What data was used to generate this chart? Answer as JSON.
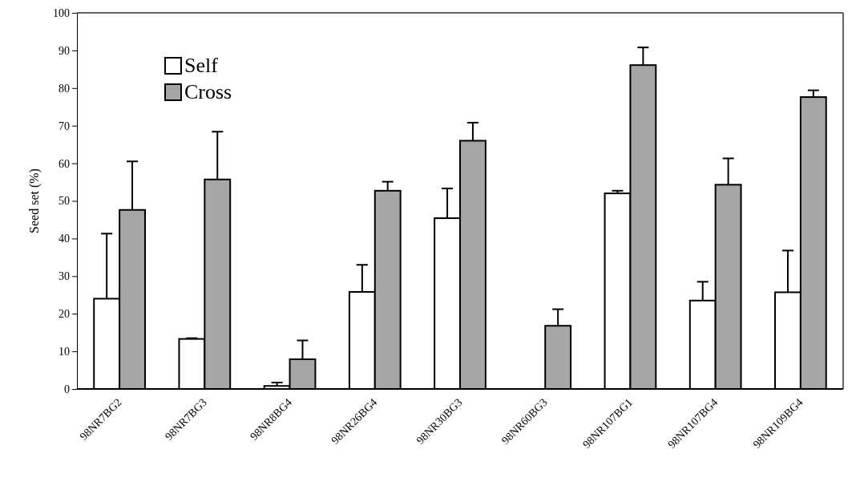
{
  "chart_data": {
    "type": "bar",
    "ylabel": "Seed set (%)",
    "categories": [
      "98NR7BG2",
      "98NR7BG3",
      "98NR8BG4",
      "98NR26BG4",
      "98NR30BG3",
      "98NR60BG3",
      "98NR107BG1",
      "98NR107BG4",
      "98NR109BG4"
    ],
    "series": [
      {
        "name": "Self",
        "color": "#ffffff",
        "values": [
          24,
          13.3,
          0.8,
          25.8,
          45.4,
          0,
          52,
          23.5,
          25.7
        ],
        "errors": [
          [
            24,
            41.3
          ],
          [
            13.3,
            13.5
          ],
          [
            0.8,
            1.7
          ],
          [
            25.8,
            33
          ],
          [
            45.4,
            53.3
          ],
          null,
          [
            52,
            52.7
          ],
          [
            23.5,
            28.5
          ],
          [
            25.7,
            36.8
          ]
        ]
      },
      {
        "name": "Cross",
        "color": "#a6a6a6",
        "values": [
          47.6,
          55.7,
          7.9,
          52.7,
          66,
          16.8,
          86.1,
          54.3,
          77.6
        ],
        "errors": [
          [
            47.6,
            60.5
          ],
          [
            55.7,
            68.4
          ],
          [
            7.9,
            12.9
          ],
          [
            52.7,
            55.1
          ],
          [
            66,
            70.8
          ],
          [
            16.8,
            21.2
          ],
          [
            86.1,
            90.8
          ],
          [
            54.3,
            61.3
          ],
          [
            77.6,
            79.4
          ]
        ]
      }
    ],
    "ylim": [
      0,
      100
    ],
    "yticks": [
      0,
      10,
      20,
      30,
      40,
      50,
      60,
      70,
      80,
      90,
      100
    ],
    "grid": false,
    "legend": "top left"
  }
}
